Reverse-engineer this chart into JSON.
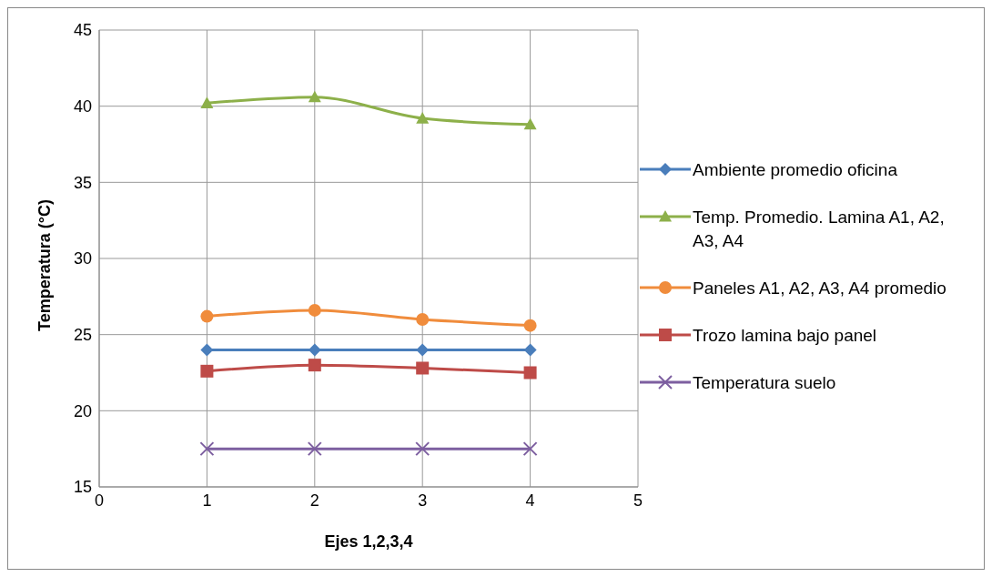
{
  "chart_data": {
    "type": "line",
    "xlabel": "Ejes 1,2,3,4",
    "ylabel": "Temperatura (°C)",
    "x": [
      1,
      2,
      3,
      4
    ],
    "xlim": [
      0,
      5
    ],
    "xticks": [
      0,
      1,
      2,
      3,
      4,
      5
    ],
    "ylim": [
      15,
      45
    ],
    "yticks": [
      15,
      20,
      25,
      30,
      35,
      40,
      45
    ],
    "grid": true,
    "legend": "right",
    "line_style": "solid",
    "series": [
      {
        "name": "Ambiente promedio oficina",
        "color": "#4a7ebb",
        "marker": "diamond",
        "values": [
          24,
          24,
          24,
          24
        ]
      },
      {
        "name": "Temp. Promedio. Lamina A1, A2, A3, A4",
        "color": "#8db04a",
        "marker": "triangle",
        "values": [
          40.2,
          40.6,
          39.2,
          38.8
        ]
      },
      {
        "name": "Paneles A1, A2, A3, A4 promedio",
        "color": "#f08c3c",
        "marker": "circle",
        "values": [
          26.2,
          26.6,
          26.0,
          25.6
        ]
      },
      {
        "name": "Trozo lamina bajo panel",
        "color": "#be4b48",
        "marker": "square",
        "values": [
          22.6,
          23.0,
          22.8,
          22.5
        ]
      },
      {
        "name": "Temperatura suelo",
        "color": "#7d5fa0",
        "marker": "cross",
        "values": [
          17.5,
          17.5,
          17.5,
          17.5
        ]
      }
    ]
  }
}
